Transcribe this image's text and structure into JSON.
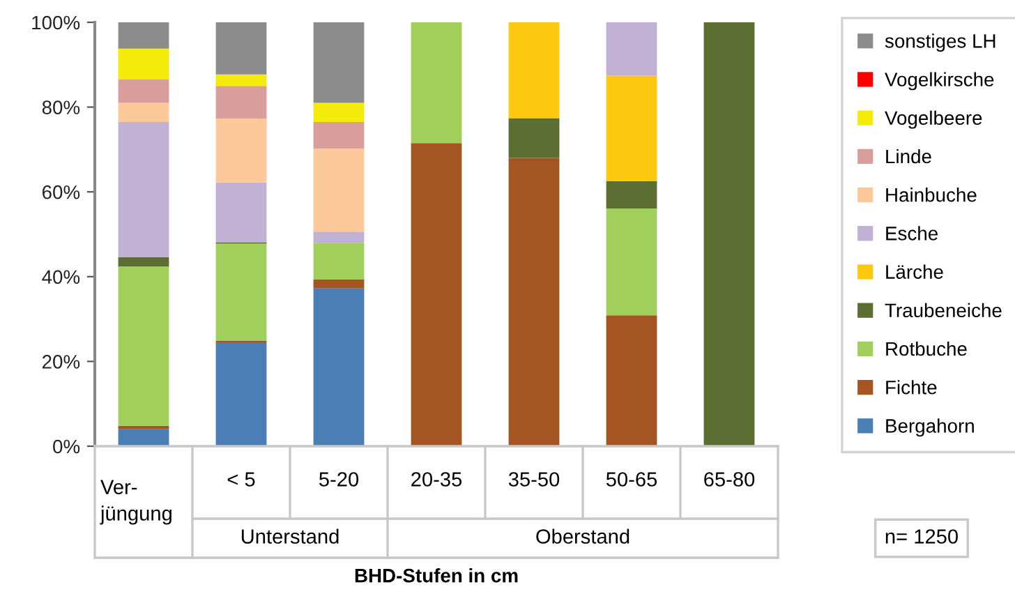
{
  "chart_data": {
    "type": "bar",
    "stacked": true,
    "xlabel": "BHD-Stufen in cm",
    "categories": [
      "Ver-\njüngung",
      "< 5",
      "5-20",
      "20-35",
      "35-50",
      "50-65",
      "65-80"
    ],
    "series": [
      {
        "name": "Bergahorn",
        "color": "#4a7eb4",
        "values": [
          4.0,
          24.5,
          37.2,
          0,
          0,
          0,
          0
        ]
      },
      {
        "name": "Fichte",
        "color": "#a55522",
        "values": [
          0.8,
          0.4,
          2.1,
          71.5,
          68.0,
          30.9,
          0
        ]
      },
      {
        "name": "Rotbuche",
        "color": "#a0cf5c",
        "values": [
          37.6,
          22.9,
          8.7,
          28.5,
          0,
          25.2,
          0
        ]
      },
      {
        "name": "Traubeneiche",
        "color": "#5c6e31",
        "values": [
          2.2,
          0.3,
          0,
          0,
          9.4,
          6.4,
          100
        ]
      },
      {
        "name": "Lärche",
        "color": "#fec80e",
        "values": [
          0,
          0,
          0,
          0,
          22.6,
          24.9,
          0
        ]
      },
      {
        "name": "Esche",
        "color": "#c0b0d4",
        "values": [
          31.9,
          14.1,
          2.6,
          0,
          0,
          12.6,
          0
        ]
      },
      {
        "name": "Hainbuche",
        "color": "#fdc89a",
        "values": [
          4.5,
          15.1,
          19.6,
          0,
          0,
          0,
          0
        ]
      },
      {
        "name": "Linde",
        "color": "#d99d9c",
        "values": [
          5.5,
          7.7,
          6.3,
          0,
          0,
          0,
          0
        ]
      },
      {
        "name": "Vogelbeere",
        "color": "#f5eb0b",
        "values": [
          7.3,
          2.7,
          4.5,
          0,
          0,
          0,
          0
        ]
      },
      {
        "name": "Vogelkirsche",
        "color": "#ff0000",
        "values": [
          0,
          0,
          0,
          0,
          0,
          0,
          0
        ]
      },
      {
        "name": "sonstiges LH",
        "color": "#8c8c8c",
        "values": [
          6.2,
          12.3,
          19.0,
          0,
          0,
          0,
          0
        ]
      }
    ],
    "ylim": [
      0,
      100
    ],
    "yticks": [
      {
        "value": 0,
        "label": "0%"
      },
      {
        "value": 20,
        "label": "20%"
      },
      {
        "value": 40,
        "label": "40%"
      },
      {
        "value": 60,
        "label": "60%"
      },
      {
        "value": 80,
        "label": "80%"
      },
      {
        "value": 100,
        "label": "100%"
      }
    ],
    "legend": "right",
    "grid": false,
    "annotations": [
      "Unterstand",
      "Oberstand",
      "n= 1250"
    ]
  }
}
